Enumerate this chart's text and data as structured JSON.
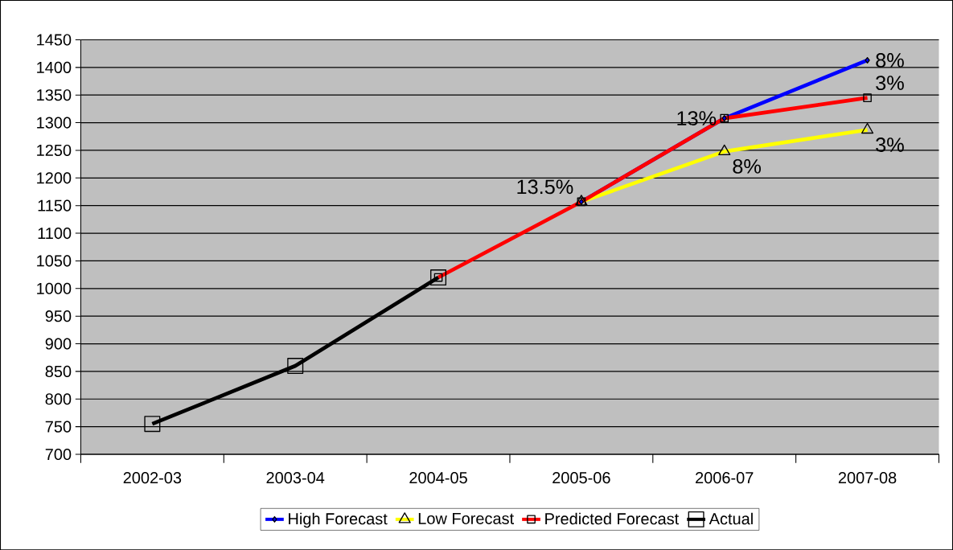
{
  "chart_data": {
    "type": "line",
    "categories": [
      "2002-03",
      "2003-04",
      "2004-05",
      "2005-06",
      "2006-07",
      "2007-08"
    ],
    "series": [
      {
        "name": "High Forecast",
        "color": "#0000ff",
        "marker": "diamond",
        "values": [
          null,
          null,
          null,
          1157,
          1308,
          1413
        ]
      },
      {
        "name": "Low Forecast",
        "color": "#ffff00",
        "marker": "triangle",
        "values": [
          null,
          null,
          null,
          1157,
          1248,
          1287
        ]
      },
      {
        "name": "Predicted Forecast",
        "color": "#ff0000",
        "marker": "square",
        "values": [
          null,
          null,
          1020,
          1157,
          1308,
          1345
        ]
      },
      {
        "name": "Actual",
        "color": "#000000",
        "marker": "square",
        "values": [
          755,
          860,
          1020,
          null,
          null,
          null
        ]
      }
    ],
    "ylim": [
      700,
      1450
    ],
    "yticks": [
      700,
      750,
      800,
      850,
      900,
      950,
      1000,
      1050,
      1100,
      1150,
      1200,
      1250,
      1300,
      1350,
      1400,
      1450
    ],
    "grid": "y",
    "legend": "bottom",
    "line_style": "solid",
    "annotations": [
      {
        "text": "13.5%",
        "x": "2005-06",
        "y": 1157
      },
      {
        "text": "13%",
        "x": "2006-07",
        "y": 1308
      },
      {
        "text": "8%",
        "x": "2007-08",
        "y": 1413
      },
      {
        "text": "3%",
        "x": "2007-08",
        "y": 1345
      },
      {
        "text": "8%",
        "x": "2006-07",
        "y": 1248
      },
      {
        "text": "3%",
        "x": "2007-08",
        "y": 1287
      }
    ]
  }
}
